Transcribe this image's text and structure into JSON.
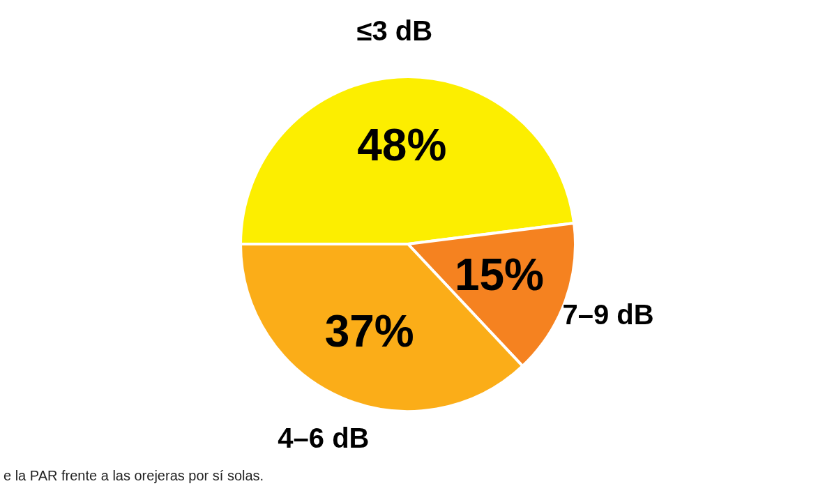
{
  "chart_data": {
    "type": "pie",
    "categories": [
      "≤3 dB",
      "7–9 dB",
      "4–6 dB"
    ],
    "values": [
      48,
      15,
      37
    ],
    "colors": [
      "#fcee00",
      "#f58220",
      "#fbad18"
    ],
    "value_labels": [
      "48%",
      "15%",
      "37%"
    ],
    "annotations": [
      "e la PAR frente a las orejeras por sí solas."
    ]
  }
}
